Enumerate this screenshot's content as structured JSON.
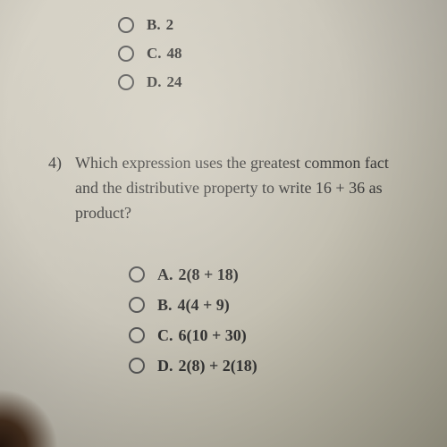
{
  "colors": {
    "text": "#3a3a3a",
    "radio_border": "#555555",
    "paper_light": "#d8d4c8",
    "paper_mid": "#c8c4b8",
    "paper_dark": "#b8b4a0"
  },
  "prev_question": {
    "options": [
      {
        "letter": "B.",
        "text": "2"
      },
      {
        "letter": "C.",
        "text": "48"
      },
      {
        "letter": "D.",
        "text": "24"
      }
    ]
  },
  "question4": {
    "number": "4)",
    "line1": "Which expression uses the greatest common fact",
    "line2": "and the distributive property to write 16 + 36 as",
    "line3": "product?",
    "options": [
      {
        "letter": "A.",
        "text": "2(8 + 18)"
      },
      {
        "letter": "B.",
        "text": "4(4 + 9)"
      },
      {
        "letter": "C.",
        "text": "6(10 + 30)"
      },
      {
        "letter": "D.",
        "text": "2(8) + 2(18)"
      }
    ]
  }
}
